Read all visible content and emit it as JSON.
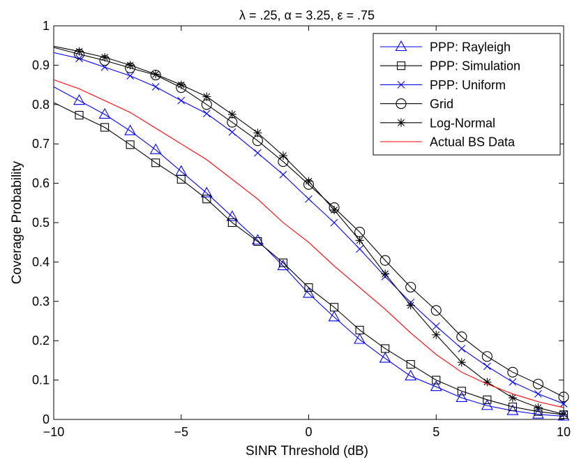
{
  "chart_data": {
    "type": "line",
    "title": "λ = .25, α = 3.25, ε = .75",
    "xlabel": "SINR Threshold (dB)",
    "ylabel": "Coverage Probability",
    "xlim": [
      -10,
      10
    ],
    "ylim": [
      0,
      1
    ],
    "xticks": [
      -10,
      -5,
      0,
      5,
      10
    ],
    "yticks": [
      0,
      0.1,
      0.2,
      0.3,
      0.4,
      0.5,
      0.6,
      0.7,
      0.8,
      0.9,
      1
    ],
    "xtick_labels": [
      "−10",
      "−5",
      "0",
      "5",
      "10"
    ],
    "ytick_labels": [
      "0",
      "0.1",
      "0.2",
      "0.3",
      "0.4",
      "0.5",
      "0.6",
      "0.7",
      "0.8",
      "0.9",
      "1"
    ],
    "grid": false,
    "legend_position": "top-right",
    "series": [
      {
        "name": "PPP: Rayleigh",
        "color": "#0000ff",
        "marker": "triangle",
        "x": [
          -10,
          -9,
          -8,
          -7,
          -6,
          -5,
          -4,
          -3,
          -2,
          -1,
          0,
          1,
          2,
          3,
          4,
          5,
          6,
          7,
          8,
          9,
          10
        ],
        "y": [
          0.845,
          0.81,
          0.775,
          0.733,
          0.685,
          0.63,
          0.575,
          0.515,
          0.455,
          0.39,
          0.32,
          0.26,
          0.203,
          0.155,
          0.11,
          0.083,
          0.055,
          0.035,
          0.022,
          0.013,
          0.008
        ],
        "marker_x": [
          -9,
          -8,
          -7,
          -6,
          -5,
          -4,
          -3,
          -2,
          -1,
          0,
          1,
          2,
          3,
          4,
          5,
          6,
          7,
          8,
          9,
          10
        ]
      },
      {
        "name": "PPP: Simulation",
        "color": "#000000",
        "marker": "square",
        "x": [
          -10,
          -9,
          -8,
          -7,
          -6,
          -5,
          -4,
          -3,
          -2,
          -1,
          0,
          1,
          2,
          3,
          4,
          5,
          6,
          7,
          8,
          9,
          10
        ],
        "y": [
          0.805,
          0.773,
          0.742,
          0.698,
          0.652,
          0.61,
          0.56,
          0.5,
          0.452,
          0.398,
          0.335,
          0.285,
          0.227,
          0.18,
          0.14,
          0.1,
          0.072,
          0.05,
          0.032,
          0.02,
          0.012
        ],
        "marker_x": [
          -9,
          -8,
          -7,
          -6,
          -5,
          -4,
          -3,
          -2,
          -1,
          0,
          1,
          2,
          3,
          4,
          5,
          6,
          7,
          8,
          9,
          10
        ]
      },
      {
        "name": "PPP: Uniform",
        "color": "#0000ff",
        "marker": "x",
        "x": [
          -10,
          -9,
          -8,
          -7,
          -6,
          -5,
          -4,
          -3,
          -2,
          -1,
          0,
          1,
          2,
          3,
          4,
          5,
          6,
          7,
          8,
          9,
          10
        ],
        "y": [
          0.932,
          0.917,
          0.895,
          0.873,
          0.845,
          0.81,
          0.777,
          0.73,
          0.677,
          0.622,
          0.56,
          0.5,
          0.433,
          0.363,
          0.297,
          0.237,
          0.18,
          0.135,
          0.095,
          0.065,
          0.04
        ],
        "marker_x": [
          -9,
          -8,
          -7,
          -6,
          -5,
          -4,
          -3,
          -2,
          -1,
          0,
          1,
          2,
          3,
          4,
          5,
          6,
          7,
          8,
          9,
          10
        ]
      },
      {
        "name": "Grid",
        "color": "#000000",
        "marker": "circle",
        "x": [
          -10,
          -9,
          -8,
          -7,
          -6,
          -5,
          -4,
          -3,
          -2,
          -1,
          0,
          1,
          2,
          3,
          4,
          5,
          6,
          7,
          8,
          9,
          10
        ],
        "y": [
          0.945,
          0.928,
          0.912,
          0.893,
          0.875,
          0.843,
          0.8,
          0.755,
          0.708,
          0.655,
          0.597,
          0.538,
          0.476,
          0.404,
          0.336,
          0.277,
          0.21,
          0.16,
          0.12,
          0.09,
          0.057
        ],
        "marker_x": [
          -9,
          -8,
          -7,
          -6,
          -5,
          -4,
          -3,
          -2,
          -1,
          0,
          1,
          2,
          3,
          4,
          5,
          6,
          7,
          8,
          9,
          10
        ]
      },
      {
        "name": "Log-Normal",
        "color": "#000000",
        "marker": "star",
        "x": [
          -10,
          -9,
          -8,
          -7,
          -6,
          -5,
          -4,
          -3,
          -2,
          -1,
          0,
          1,
          2,
          3,
          4,
          5,
          6,
          7,
          8,
          9,
          10
        ],
        "y": [
          0.948,
          0.935,
          0.92,
          0.9,
          0.877,
          0.85,
          0.82,
          0.775,
          0.728,
          0.67,
          0.605,
          0.532,
          0.455,
          0.37,
          0.29,
          0.215,
          0.145,
          0.095,
          0.055,
          0.03,
          0.013
        ],
        "marker_x": [
          -9,
          -8,
          -7,
          -6,
          -5,
          -4,
          -3,
          -2,
          -1,
          0,
          1,
          2,
          3,
          4,
          5,
          6,
          7,
          8,
          9,
          10
        ]
      },
      {
        "name": "Actual BS Data",
        "color": "#ff0000",
        "marker": "none",
        "x": [
          -10,
          -9,
          -8,
          -7,
          -6,
          -5,
          -4,
          -3,
          -2,
          -1,
          0,
          1,
          2,
          3,
          4,
          5,
          6,
          7,
          8,
          9,
          10
        ],
        "y": [
          0.863,
          0.84,
          0.81,
          0.78,
          0.74,
          0.7,
          0.66,
          0.61,
          0.56,
          0.5,
          0.45,
          0.39,
          0.335,
          0.28,
          0.22,
          0.165,
          0.12,
          0.09,
          0.065,
          0.045,
          0.03
        ],
        "marker_x": []
      }
    ]
  }
}
